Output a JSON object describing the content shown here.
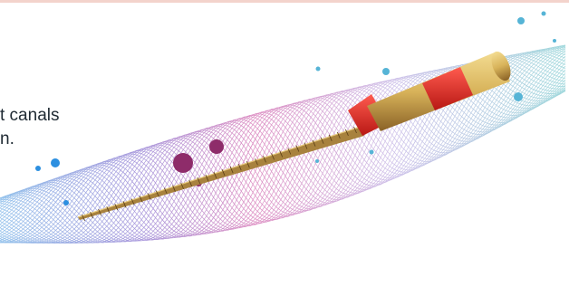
{
  "banner": {
    "tagline_line1": "t canals",
    "tagline_line2": "n."
  },
  "artwork": {
    "subject": "endodontic-file-icon",
    "colors": {
      "wave_blue": "#7fb6e8",
      "wave_purple": "#9a86d6",
      "wave_pink": "#d77ab8",
      "wave_lavender": "#c5b7e6",
      "wave_teal": "#8fd1d6",
      "shaft_gold": "#a8823e",
      "handle_gold": "#d8b35a",
      "band_red": "#e0322e",
      "dot_blue": "#3a9de0",
      "dot_plum": "#8e2c6a",
      "top_border": "#f3d3cc"
    }
  }
}
